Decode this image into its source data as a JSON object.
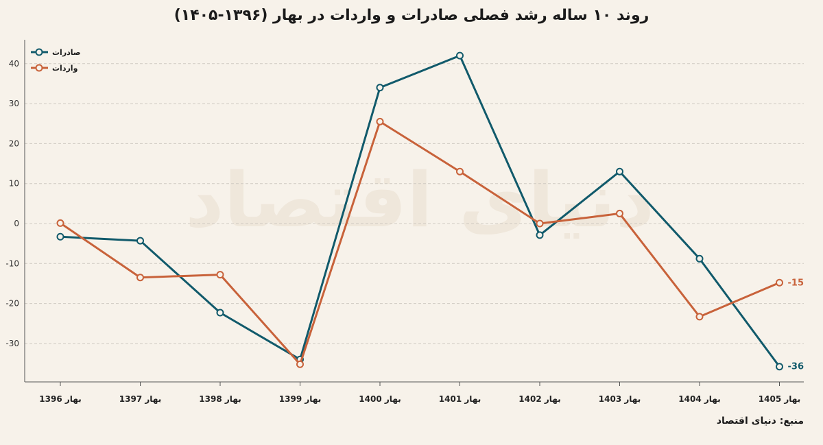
{
  "title": "روند ۱۰ ساله رشد فصلی صادرات و واردات در بهار (۱۳۹۶-۱۴۰۵)",
  "source": "منبع: دنیای اقتصاد",
  "watermark": "دنیای اقتصاد",
  "chart_data": {
    "type": "line",
    "title": "روند ۱۰ ساله رشد فصلی صادرات و واردات در بهار (۱۳۹۶-۱۴۰۵)",
    "categories": [
      "بهار 1396",
      "بهار 1397",
      "بهار 1398",
      "بهار 1399",
      "بهار 1400",
      "بهار 1401",
      "بهار 1402",
      "بهار 1403",
      "بهار 1404",
      "بهار 1405"
    ],
    "yticks": [
      -30,
      -20,
      -10,
      0,
      10,
      20,
      30,
      40
    ],
    "ylim": [
      -40,
      46
    ],
    "grid": true,
    "legend_position": "top-left",
    "series": [
      {
        "name": "صادرات",
        "color": "#115a6b",
        "values": [
          -3.3,
          -4.3,
          -22.3,
          -34.0,
          34.0,
          42.0,
          -2.9,
          13.0,
          -8.8,
          -35.8
        ],
        "end_label": "-36"
      },
      {
        "name": "واردات",
        "color": "#c8623a",
        "values": [
          0.1,
          -13.5,
          -12.8,
          -35.2,
          25.5,
          13.0,
          0.0,
          2.5,
          -23.3,
          -14.8
        ],
        "end_label": "-15"
      }
    ]
  }
}
